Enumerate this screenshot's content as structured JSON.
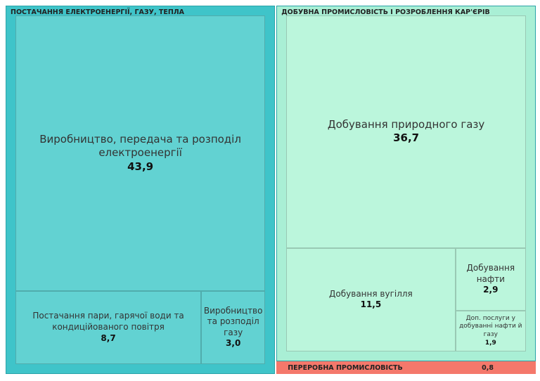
{
  "chart_data": {
    "type": "treemap",
    "groups": [
      {
        "name": "ПОСТАЧАННЯ ЕЛЕКТРОЕНЕРГІЇ, ГАЗУ, ТЕПЛА",
        "color": "#3fc4c9",
        "child_color": "#62d2d2",
        "categories": [
          "Виробництво, передача та розподіл електроенергії",
          "Постачання пари, гарячої води та кондиційованого повітря",
          "Виробництво та розподіл газу"
        ],
        "values": [
          43.9,
          8.7,
          3.0
        ],
        "value_labels": [
          "43,9",
          "8,7",
          "3,0"
        ]
      },
      {
        "name": "ДОБУВНА ПРОМИСЛОВІСТЬ І РОЗРОБЛЕННЯ КАР'ЄРІВ",
        "color": "#a9efd5",
        "child_color": "#bbf6dc",
        "categories": [
          "Добування природного газу",
          "Добування вугілля",
          "Добування нафти",
          "Доп. послуги у добуванні нафти й газу"
        ],
        "values": [
          36.7,
          11.5,
          2.9,
          1.9
        ],
        "value_labels": [
          "36,7",
          "11,5",
          "2,9",
          "1,9"
        ]
      },
      {
        "name": "ПЕРЕРОБНА ПРОМИСЛОВІСТЬ",
        "color": "#f4786b",
        "value": 0.8,
        "value_label": "0,8"
      }
    ]
  }
}
